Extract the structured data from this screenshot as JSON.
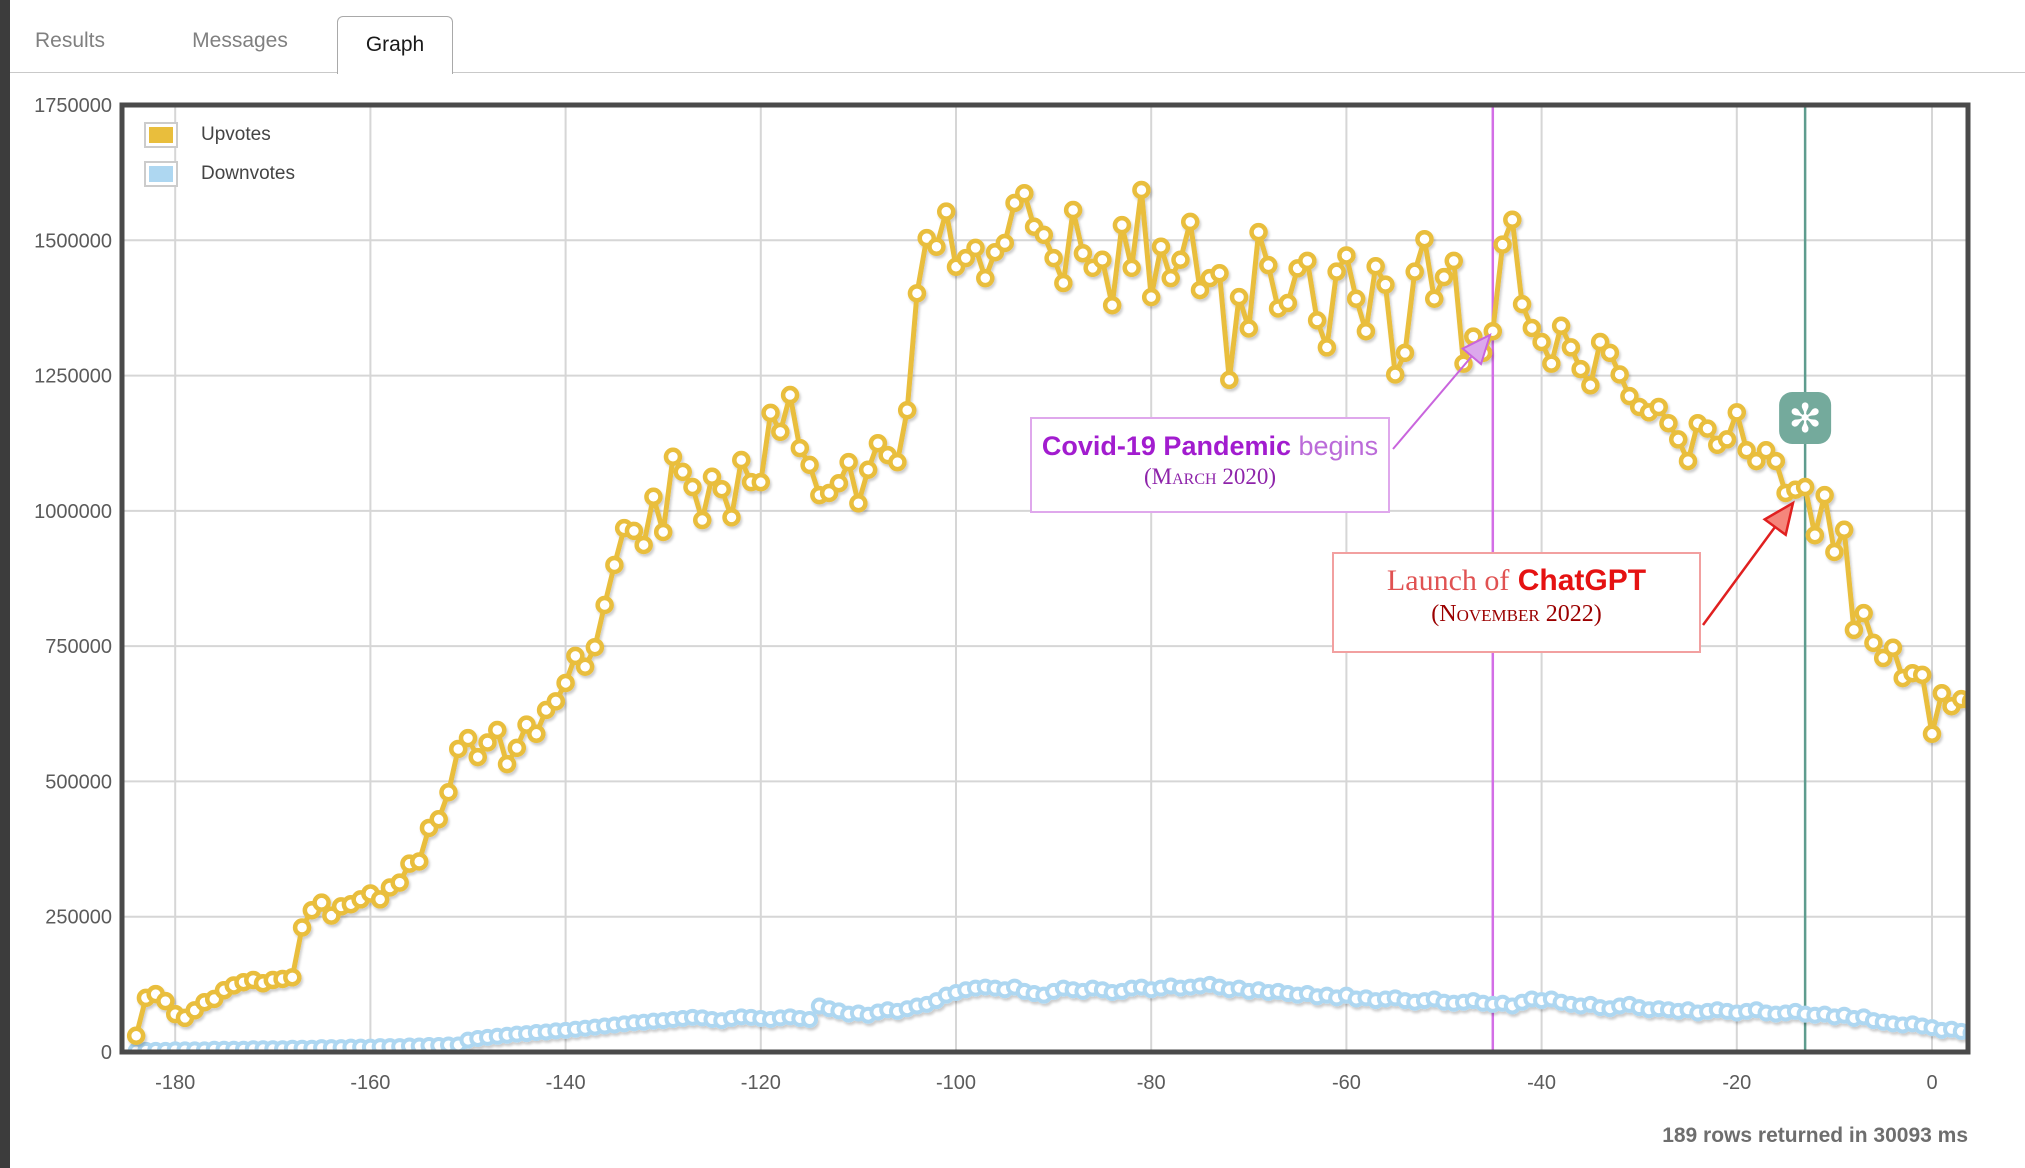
{
  "tabs": {
    "results": "Results",
    "messages": "Messages",
    "graph": "Graph"
  },
  "status_text": "189 rows returned in 30093 ms",
  "legend": [
    {
      "label": "Upvotes",
      "color": "#E9BE3C"
    },
    {
      "label": "Downvotes",
      "color": "#AED7F1"
    }
  ],
  "annotations": {
    "covid": {
      "x": -45,
      "line_color": "#D36EE6",
      "arrow_color": "#C965DD",
      "arrowhead_fill": "#DCA8EC",
      "title": "Covid-19 Pandemic",
      "title_suffix": "begins",
      "subtitle": "(March 2020)"
    },
    "chatgpt": {
      "x": -13,
      "line_color": "#5E9C8E",
      "arrow_color": "#E02020",
      "arrowhead_fill": "#F5867B",
      "prefix": "Launch of",
      "title": "ChatGPT",
      "subtitle": "(November 2022)",
      "icon": "openai-logo",
      "icon_color": "#74AA9C"
    }
  },
  "chart_data": {
    "type": "line",
    "title": "",
    "xlabel": "",
    "ylabel": "",
    "grid": true,
    "legend_position": "top-left",
    "xlim": [
      -185.5,
      3.9
    ],
    "ylim": [
      0,
      1750000
    ],
    "x_ticks": [
      -180,
      -160,
      -140,
      -120,
      -100,
      -80,
      -60,
      -40,
      -20,
      0
    ],
    "y_ticks": [
      0,
      250000,
      500000,
      750000,
      1000000,
      1250000,
      1500000,
      1750000
    ],
    "x_start": -184,
    "x_step": 1,
    "series": [
      {
        "name": "Upvotes",
        "color": "#E9BE3C",
        "values": [
          30000,
          100000,
          107000,
          94000,
          70000,
          63000,
          77000,
          92000,
          98000,
          114000,
          123000,
          129000,
          133000,
          127000,
          133000,
          135000,
          138000,
          230000,
          262000,
          276000,
          252000,
          269000,
          273000,
          282000,
          293000,
          282000,
          304000,
          313000,
          348000,
          352000,
          414000,
          430000,
          480000,
          560000,
          580000,
          545000,
          572000,
          595000,
          532000,
          562000,
          605000,
          588000,
          632000,
          648000,
          682000,
          732000,
          712000,
          748000,
          826000,
          900000,
          968000,
          963000,
          937000,
          1026000,
          961000,
          1100000,
          1072000,
          1044000,
          983000,
          1063000,
          1040000,
          988000,
          1094000,
          1053000,
          1053000,
          1181000,
          1146000,
          1214000,
          1116000,
          1085000,
          1029000,
          1033000,
          1051000,
          1090000,
          1014000,
          1076000,
          1125000,
          1103000,
          1090000,
          1186000,
          1402000,
          1504000,
          1488000,
          1553000,
          1451000,
          1467000,
          1486000,
          1430000,
          1478000,
          1495000,
          1569000,
          1587000,
          1525000,
          1510000,
          1467000,
          1421000,
          1556000,
          1476000,
          1449000,
          1464000,
          1380000,
          1528000,
          1449000,
          1593000,
          1395000,
          1488000,
          1430000,
          1464000,
          1534000,
          1408000,
          1430000,
          1439000,
          1242000,
          1395000,
          1337000,
          1515000,
          1454000,
          1374000,
          1384000,
          1448000,
          1462000,
          1352000,
          1302000,
          1442000,
          1472000,
          1392000,
          1332000,
          1452000,
          1418000,
          1252000,
          1292000,
          1442000,
          1502000,
          1392000,
          1432000,
          1462000,
          1272000,
          1322000,
          1292000,
          1332000,
          1492000,
          1538000,
          1382000,
          1338000,
          1312000,
          1272000,
          1342000,
          1302000,
          1262000,
          1232000,
          1312000,
          1292000,
          1252000,
          1212000,
          1192000,
          1182000,
          1192000,
          1162000,
          1132000,
          1092000,
          1162000,
          1152000,
          1122000,
          1132000,
          1182000,
          1112000,
          1092000,
          1112000,
          1092000,
          1033000,
          1039000,
          1044000,
          955000,
          1029000,
          924000,
          965000,
          780000,
          811000,
          756000,
          728000,
          747000,
          691000,
          700000,
          697000,
          588000,
          663000,
          639000,
          652000,
          648000
        ]
      },
      {
        "name": "Downvotes",
        "color": "#AED7F1",
        "values": [
          2000,
          3000,
          3000,
          3000,
          4000,
          4000,
          4000,
          4000,
          5000,
          5000,
          5000,
          5000,
          6000,
          6000,
          6000,
          6000,
          7000,
          7000,
          7000,
          8000,
          8000,
          8000,
          9000,
          9000,
          9000,
          10000,
          10000,
          10000,
          11000,
          11000,
          12000,
          12000,
          13000,
          13000,
          22000,
          25000,
          27000,
          29000,
          31000,
          33000,
          34000,
          36000,
          37000,
          39000,
          40000,
          42000,
          44000,
          46000,
          48000,
          50000,
          52000,
          54000,
          55000,
          57000,
          58000,
          60000,
          62000,
          64000,
          63000,
          60000,
          58000,
          62000,
          65000,
          64000,
          62000,
          60000,
          63000,
          65000,
          62000,
          60000,
          85000,
          80000,
          76000,
          70000,
          72000,
          68000,
          74000,
          78000,
          75000,
          80000,
          85000,
          88000,
          95000,
          105000,
          110000,
          115000,
          118000,
          120000,
          118000,
          115000,
          120000,
          112000,
          108000,
          105000,
          112000,
          118000,
          115000,
          112000,
          118000,
          115000,
          110000,
          112000,
          118000,
          120000,
          115000,
          118000,
          122000,
          118000,
          120000,
          122000,
          125000,
          120000,
          115000,
          118000,
          112000,
          115000,
          110000,
          112000,
          108000,
          105000,
          108000,
          102000,
          105000,
          100000,
          105000,
          98000,
          100000,
          95000,
          98000,
          100000,
          95000,
          92000,
          95000,
          98000,
          92000,
          90000,
          92000,
          95000,
          90000,
          88000,
          90000,
          85000,
          92000,
          98000,
          95000,
          98000,
          92000,
          88000,
          85000,
          88000,
          82000,
          80000,
          85000,
          88000,
          82000,
          78000,
          80000,
          78000,
          75000,
          78000,
          72000,
          75000,
          78000,
          75000,
          72000,
          75000,
          78000,
          72000,
          70000,
          72000,
          75000,
          70000,
          68000,
          70000,
          65000,
          68000,
          62000,
          65000,
          58000,
          55000,
          52000,
          50000,
          52000,
          48000,
          45000,
          40000,
          42000,
          38000,
          35000
        ]
      }
    ]
  }
}
